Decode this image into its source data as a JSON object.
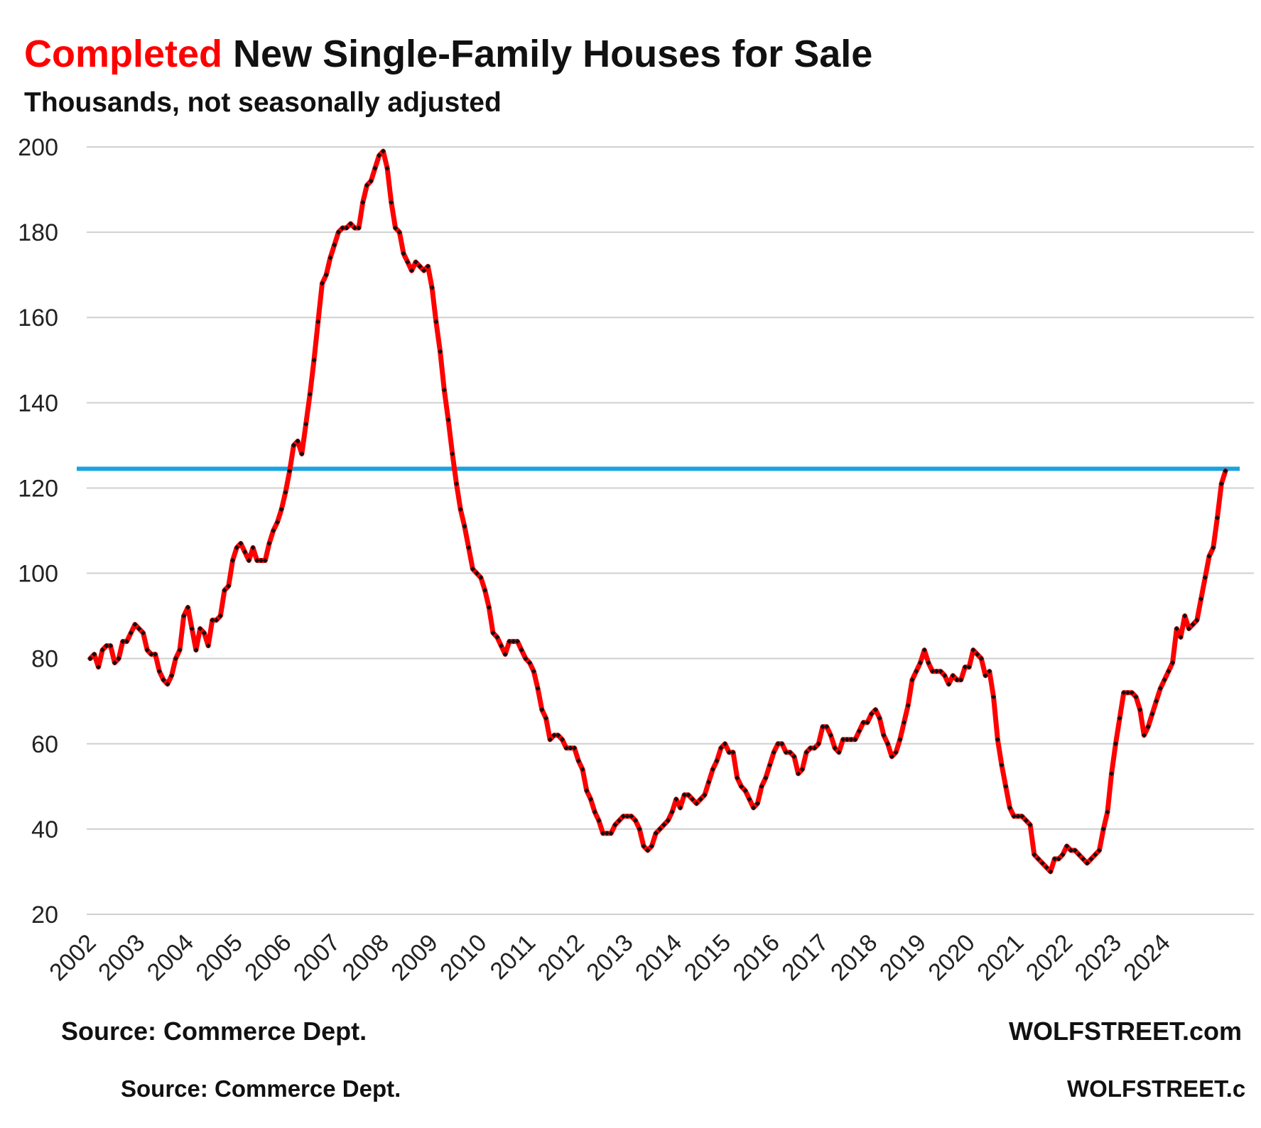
{
  "chart_data": {
    "type": "line",
    "title_highlight": "Completed",
    "title_rest": " New Single-Family Houses for Sale",
    "subtitle": "Thousands, not seasonally adjusted",
    "ylim": [
      20,
      200
    ],
    "yticks": [
      20,
      40,
      60,
      80,
      100,
      120,
      140,
      160,
      180,
      200
    ],
    "xtick_labels": [
      "2002",
      "2003",
      "2004",
      "2005",
      "2006",
      "2007",
      "2008",
      "2009",
      "2010",
      "2011",
      "2012",
      "2013",
      "2014",
      "2015",
      "2016",
      "2017",
      "2018",
      "2019",
      "2020",
      "2021",
      "2022",
      "2023",
      "2024"
    ],
    "grid": "horizontal",
    "reference_line": {
      "value": 124.5,
      "color": "#1aa3e0"
    },
    "series": [
      {
        "name": "",
        "color": "#ff0000",
        "marker_color": "#111111",
        "start": "2002-01",
        "frequency": "monthly",
        "values": [
          80,
          81,
          78,
          82,
          83,
          83,
          79,
          80,
          84,
          84,
          86,
          88,
          87,
          86,
          82,
          81,
          81,
          77,
          75,
          74,
          76,
          80,
          82,
          90,
          92,
          87,
          82,
          87,
          86,
          83,
          89,
          89,
          90,
          96,
          97,
          103,
          106,
          107,
          105,
          103,
          106,
          103,
          103,
          103,
          107,
          110,
          112,
          115,
          119,
          124,
          130,
          131,
          128,
          135,
          142,
          150,
          159,
          168,
          170,
          174,
          177,
          180,
          181,
          181,
          182,
          181,
          181,
          187,
          191,
          192,
          195,
          198,
          199,
          195,
          187,
          181,
          180,
          175,
          173,
          171,
          173,
          172,
          171,
          172,
          167,
          159,
          152,
          143,
          136,
          128,
          121,
          115,
          111,
          106,
          101,
          100,
          99,
          96,
          92,
          86,
          85,
          83,
          81,
          84,
          84,
          84,
          82,
          80,
          79,
          77,
          73,
          68,
          66,
          61,
          62,
          62,
          61,
          59,
          59,
          59,
          56,
          54,
          49,
          47,
          44,
          42,
          39,
          39,
          39,
          41,
          42,
          43,
          43,
          43,
          42,
          40,
          36,
          35,
          36,
          39,
          40,
          41,
          42,
          44,
          47,
          45,
          48,
          48,
          47,
          46,
          47,
          48,
          51,
          54,
          56,
          59,
          60,
          58,
          58,
          52,
          50,
          49,
          47,
          45,
          46,
          50,
          52,
          55,
          58,
          60,
          60,
          58,
          58,
          57,
          53,
          54,
          58,
          59,
          59,
          60,
          64,
          64,
          62,
          59,
          58,
          61,
          61,
          61,
          61,
          63,
          65,
          65,
          67,
          68,
          66,
          62,
          60,
          57,
          58,
          61,
          65,
          69,
          75,
          77,
          79,
          82,
          79,
          77,
          77,
          77,
          76,
          74,
          76,
          75,
          75,
          78,
          78,
          82,
          81,
          80,
          76,
          77,
          71,
          61,
          55,
          50,
          45,
          43,
          43,
          43,
          42,
          41,
          34,
          33,
          32,
          31,
          30,
          33,
          33,
          34,
          36,
          35,
          35,
          34,
          33,
          32,
          33,
          34,
          35,
          40,
          44,
          53,
          60,
          66,
          72,
          72,
          72,
          71,
          68,
          62,
          64,
          67,
          70,
          73,
          75,
          77,
          79,
          87,
          85,
          90,
          87,
          88,
          89,
          94,
          99,
          104,
          106,
          113,
          121,
          124
        ]
      }
    ]
  },
  "footer": {
    "source": "Source: Commerce Dept.",
    "brand": "WOLFSTREET.com",
    "source_dup": "Source: Commerce Dept.",
    "brand_dup": "WOLFSTREET.c"
  }
}
